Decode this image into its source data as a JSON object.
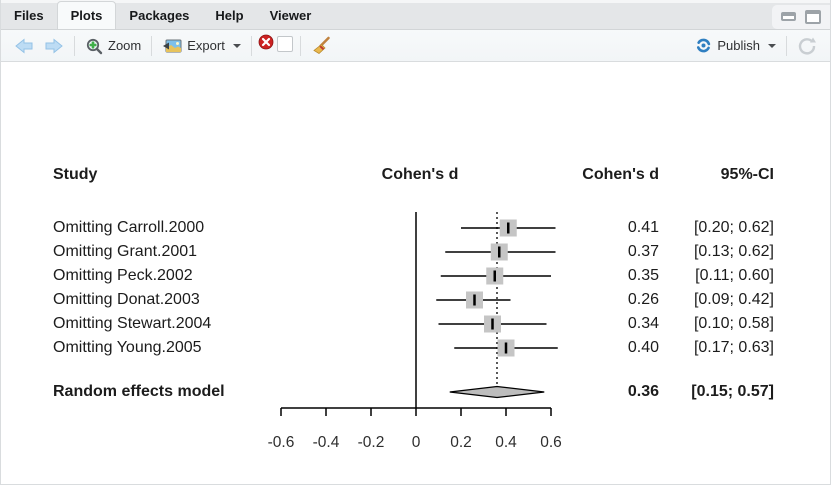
{
  "tabs": {
    "items": [
      "Files",
      "Plots",
      "Packages",
      "Help",
      "Viewer"
    ],
    "active": "Plots"
  },
  "window_controls": [
    "minimize",
    "maximize"
  ],
  "toolbar": {
    "zoom_label": "Zoom",
    "export_label": "Export",
    "publish_label": "Publish",
    "icons": {
      "back": "arrow-left",
      "forward": "arrow-right",
      "zoom": "magnifier-plus",
      "export": "image-export",
      "remove_plot": "red-circle-x",
      "clear_plots": "broom",
      "publish": "publish-swirl",
      "refresh": "refresh-arrow"
    }
  },
  "chart_data": {
    "type": "forest",
    "columns": {
      "study": "Study",
      "plot": "Cohen's d",
      "effect": "Cohen's d",
      "ci": "95%-CI"
    },
    "rows": [
      {
        "label": "Omitting Carroll.2000",
        "estimate": 0.41,
        "ci_low": 0.2,
        "ci_high": 0.62,
        "effect_text": "0.41",
        "ci_text": "[0.20; 0.62]"
      },
      {
        "label": "Omitting Grant.2001",
        "estimate": 0.37,
        "ci_low": 0.13,
        "ci_high": 0.62,
        "effect_text": "0.37",
        "ci_text": "[0.13; 0.62]"
      },
      {
        "label": "Omitting Peck.2002",
        "estimate": 0.35,
        "ci_low": 0.11,
        "ci_high": 0.6,
        "effect_text": "0.35",
        "ci_text": "[0.11; 0.60]"
      },
      {
        "label": "Omitting Donat.2003",
        "estimate": 0.26,
        "ci_low": 0.09,
        "ci_high": 0.42,
        "effect_text": "0.26",
        "ci_text": "[0.09; 0.42]"
      },
      {
        "label": "Omitting Stewart.2004",
        "estimate": 0.34,
        "ci_low": 0.1,
        "ci_high": 0.58,
        "effect_text": "0.34",
        "ci_text": "[0.10; 0.58]"
      },
      {
        "label": "Omitting Young.2005",
        "estimate": 0.4,
        "ci_low": 0.17,
        "ci_high": 0.63,
        "effect_text": "0.40",
        "ci_text": "[0.17; 0.63]"
      }
    ],
    "summary": {
      "label": "Random effects model",
      "estimate": 0.36,
      "ci_low": 0.15,
      "ci_high": 0.57,
      "effect_text": "0.36",
      "ci_text": "[0.15; 0.57]"
    },
    "reference_line": 0,
    "dashed_line_at": 0.36,
    "x_axis": {
      "ticks": [
        -0.6,
        -0.4,
        -0.2,
        0,
        0.2,
        0.4,
        0.6
      ],
      "tick_labels": [
        "-0.6",
        "-0.4",
        "-0.2",
        "0",
        "0.2",
        "0.4",
        "0.6"
      ],
      "range": [
        -0.72,
        0.72
      ]
    },
    "colors": {
      "square": "#c5c5c5",
      "diamond_fill": "#bdbdbd",
      "line": "#000000"
    }
  }
}
